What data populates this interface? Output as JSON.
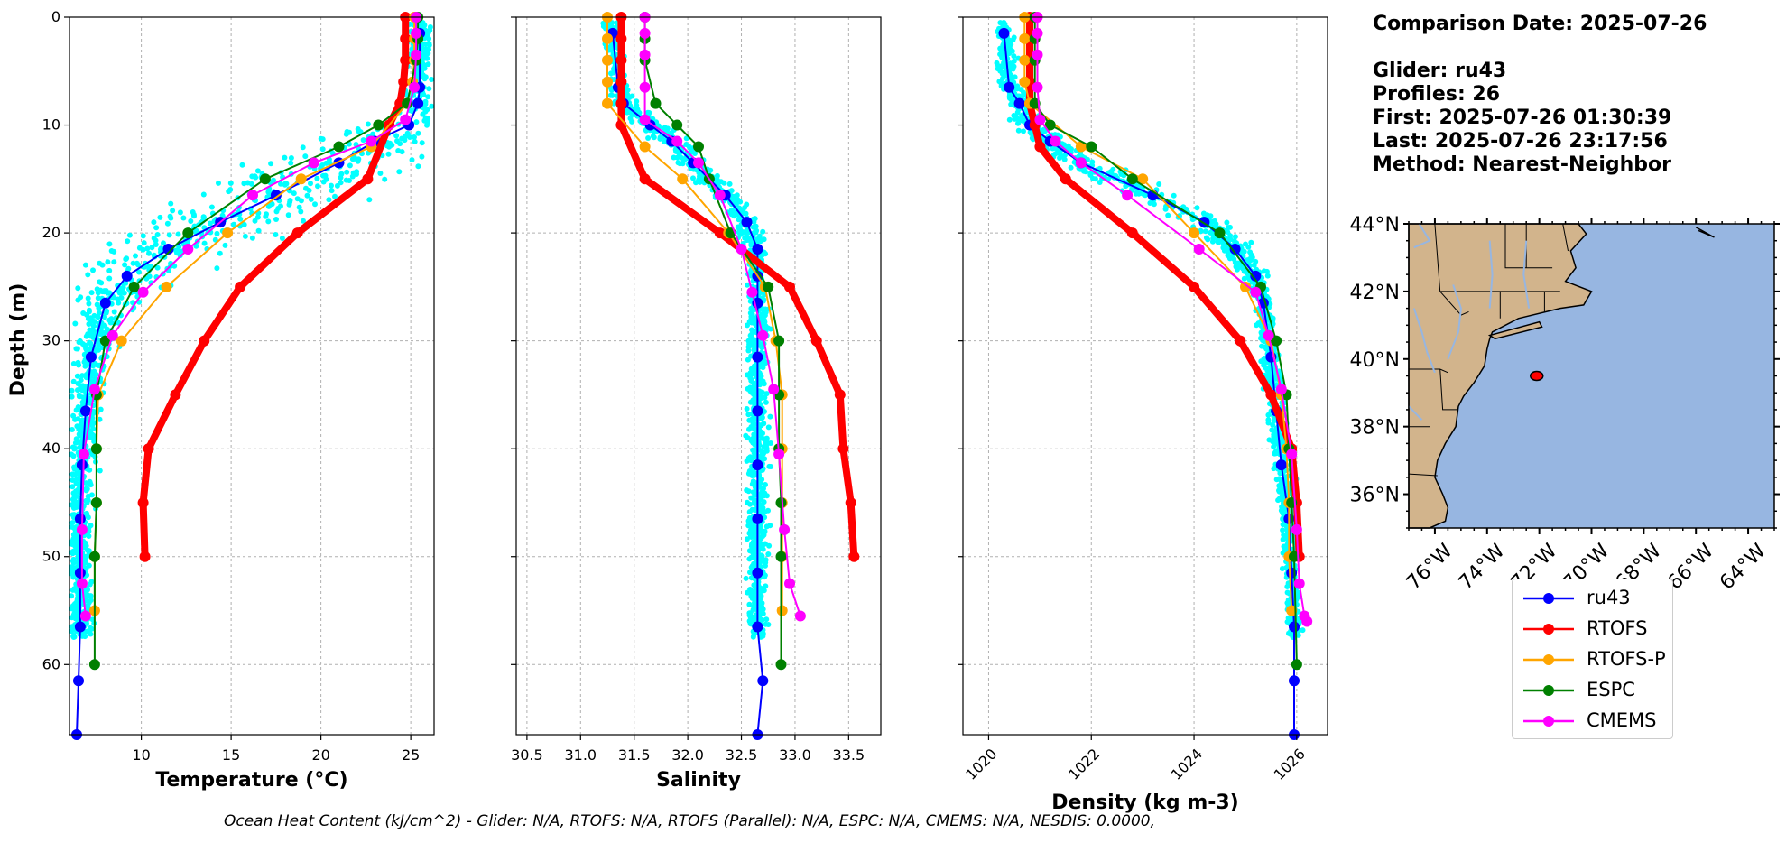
{
  "chart_data": [
    {
      "type": "line",
      "xlabel": "Temperature (°C)",
      "ylabel": "Depth (m)",
      "xlim": [
        6,
        26.3
      ],
      "ylim": [
        66.5,
        0
      ],
      "xticks": [
        10,
        15,
        20,
        25
      ],
      "yticks": [
        0,
        10,
        20,
        30,
        40,
        50,
        60
      ],
      "grid": true,
      "series": [
        {
          "name": "ru43",
          "color": "#0000ff",
          "x": [
            25.5,
            25.5,
            25.4,
            24.9,
            23.0,
            21.0,
            17.5,
            14.4,
            11.5,
            9.2,
            8.0,
            7.2,
            6.9,
            6.7,
            6.6,
            6.6,
            6.6,
            6.5,
            6.4
          ],
          "y": [
            1.5,
            6.5,
            8.0,
            10.0,
            11.5,
            13.5,
            16.5,
            19.0,
            21.5,
            24.0,
            26.5,
            31.5,
            36.5,
            41.5,
            46.5,
            51.5,
            56.5,
            61.5,
            66.5
          ]
        },
        {
          "name": "RTOFS",
          "color": "#ff0000",
          "x": [
            24.7,
            24.7,
            24.7,
            24.6,
            24.4,
            23.8,
            22.6,
            18.7,
            15.5,
            13.5,
            11.9,
            10.4,
            10.1,
            10.2
          ],
          "y": [
            0,
            2,
            4,
            6,
            8,
            10,
            15,
            20,
            25,
            30,
            35,
            40,
            45,
            50
          ]
        },
        {
          "name": "RTOFS-P",
          "color": "#ffa500",
          "x": [
            25.2,
            25.2,
            25.2,
            25.1,
            24.8,
            22.8,
            18.9,
            14.8,
            11.4,
            8.9,
            7.6,
            7.5,
            7.5,
            7.4,
            7.4
          ],
          "y": [
            0,
            2,
            4,
            6,
            8,
            12,
            15,
            20,
            25,
            30,
            35,
            40,
            45,
            50,
            55
          ]
        },
        {
          "name": "ESPC",
          "color": "#008000",
          "x": [
            25.4,
            25.4,
            25.3,
            24.8,
            23.2,
            21.0,
            16.9,
            12.6,
            9.6,
            8.0,
            7.5,
            7.5,
            7.5,
            7.4,
            7.4
          ],
          "y": [
            0,
            2,
            4,
            8,
            10,
            12,
            15,
            20,
            25,
            30,
            35,
            40,
            45,
            50,
            60
          ]
        },
        {
          "name": "CMEMS",
          "color": "#ff00ff",
          "x": [
            25.3,
            25.3,
            25.3,
            25.2,
            24.7,
            22.8,
            19.6,
            16.2,
            12.6,
            10.1,
            8.4,
            7.4,
            6.8,
            6.7,
            6.7,
            6.9
          ],
          "y": [
            0,
            1.5,
            3.5,
            6.5,
            9.5,
            11.5,
            13.5,
            16.5,
            21.5,
            25.5,
            29.5,
            34.5,
            40.5,
            47.5,
            52.5,
            55.5
          ]
        }
      ]
    },
    {
      "type": "line",
      "xlabel": "Salinity",
      "xlim": [
        30.4,
        33.8
      ],
      "ylim": [
        66.5,
        0
      ],
      "xticks": [
        "30.5",
        "31.0",
        "31.5",
        "32.0",
        "32.5",
        "33.0",
        "33.5"
      ],
      "yticks": [
        0,
        10,
        20,
        30,
        40,
        50,
        60
      ],
      "grid": true,
      "series": [
        {
          "name": "ru43",
          "color": "#0000ff",
          "x": [
            31.3,
            31.35,
            31.4,
            31.65,
            31.85,
            32.05,
            32.35,
            32.55,
            32.65,
            32.65,
            32.65,
            32.65,
            32.65,
            32.65,
            32.65,
            32.65,
            32.65,
            32.7,
            32.65
          ],
          "y": [
            1.5,
            6.5,
            8.0,
            10.0,
            11.5,
            13.5,
            16.5,
            19.0,
            21.5,
            24.0,
            26.5,
            31.5,
            36.5,
            41.5,
            46.5,
            51.5,
            56.5,
            61.5,
            66.5
          ]
        },
        {
          "name": "RTOFS",
          "color": "#ff0000",
          "x": [
            31.38,
            31.38,
            31.38,
            31.38,
            31.38,
            31.38,
            31.6,
            32.3,
            32.95,
            33.2,
            33.42,
            33.45,
            33.52,
            33.55
          ],
          "y": [
            0,
            2,
            4,
            6,
            8,
            10,
            15,
            20,
            25,
            30,
            35,
            40,
            45,
            50
          ]
        },
        {
          "name": "RTOFS-P",
          "color": "#ffa500",
          "x": [
            31.25,
            31.25,
            31.25,
            31.25,
            31.25,
            31.6,
            31.95,
            32.38,
            32.72,
            32.82,
            32.88,
            32.88,
            32.88,
            32.88,
            32.88
          ],
          "y": [
            0,
            2,
            4,
            6,
            8,
            12,
            15,
            20,
            25,
            30,
            35,
            40,
            45,
            50,
            55
          ]
        },
        {
          "name": "ESPC",
          "color": "#008000",
          "x": [
            31.6,
            31.6,
            31.6,
            31.7,
            31.9,
            32.1,
            32.2,
            32.4,
            32.75,
            32.85,
            32.85,
            32.85,
            32.87,
            32.87,
            32.87
          ],
          "y": [
            0,
            2,
            4,
            8,
            10,
            12,
            15,
            20,
            25,
            30,
            35,
            40,
            45,
            50,
            60
          ]
        },
        {
          "name": "CMEMS",
          "color": "#ff00ff",
          "x": [
            31.6,
            31.6,
            31.6,
            31.6,
            31.6,
            31.9,
            32.1,
            32.3,
            32.5,
            32.6,
            32.7,
            32.8,
            32.85,
            32.9,
            32.95,
            33.05
          ],
          "y": [
            0,
            1.5,
            3.5,
            6.5,
            9.5,
            11.5,
            13.5,
            16.5,
            21.5,
            25.5,
            29.5,
            34.5,
            40.5,
            47.5,
            52.5,
            55.5
          ]
        }
      ]
    },
    {
      "type": "line",
      "xlabel": "Density (kg m-3)",
      "xlim": [
        1019.5,
        1026.6
      ],
      "ylim": [
        66.5,
        0
      ],
      "xticks": [
        1020,
        1022,
        1024,
        1026
      ],
      "yticks": [
        0,
        10,
        20,
        30,
        40,
        50,
        60
      ],
      "grid": true,
      "series": [
        {
          "name": "ru43",
          "color": "#0000ff",
          "x": [
            1020.3,
            1020.4,
            1020.6,
            1020.8,
            1021.2,
            1021.8,
            1023.2,
            1024.2,
            1024.8,
            1025.2,
            1025.35,
            1025.5,
            1025.6,
            1025.7,
            1025.85,
            1025.9,
            1025.95,
            1025.95,
            1025.95
          ],
          "y": [
            1.5,
            6.5,
            8.0,
            10.0,
            11.5,
            13.5,
            16.5,
            19.0,
            21.5,
            24.0,
            26.5,
            31.5,
            36.5,
            41.5,
            46.5,
            51.5,
            56.5,
            61.5,
            66.5
          ]
        },
        {
          "name": "RTOFS",
          "color": "#ff0000",
          "x": [
            1020.8,
            1020.8,
            1020.8,
            1020.8,
            1020.8,
            1020.9,
            1021.0,
            1021.5,
            1022.8,
            1024.0,
            1024.9,
            1025.5,
            1025.9,
            1026.0,
            1026.05
          ],
          "y": [
            0,
            2,
            4,
            6,
            8,
            10,
            12,
            15,
            20,
            25,
            30,
            35,
            40,
            45,
            50
          ]
        },
        {
          "name": "RTOFS-P",
          "color": "#ffa500",
          "x": [
            1020.7,
            1020.7,
            1020.7,
            1020.7,
            1020.8,
            1021.8,
            1023.0,
            1024.0,
            1025.0,
            1025.5,
            1025.7,
            1025.8,
            1025.85,
            1025.85,
            1025.9
          ],
          "y": [
            0,
            2,
            4,
            6,
            8,
            12,
            15,
            20,
            25,
            30,
            35,
            40,
            45,
            50,
            55
          ]
        },
        {
          "name": "ESPC",
          "color": "#008000",
          "x": [
            1020.9,
            1020.9,
            1020.9,
            1020.9,
            1021.2,
            1022.0,
            1022.8,
            1024.5,
            1025.3,
            1025.6,
            1025.8,
            1025.85,
            1025.9,
            1025.95,
            1026.0
          ],
          "y": [
            0,
            2,
            4,
            8,
            10,
            12,
            15,
            20,
            25,
            30,
            35,
            40,
            45,
            50,
            60
          ]
        },
        {
          "name": "CMEMS",
          "color": "#ff00ff",
          "x": [
            1020.95,
            1020.95,
            1020.95,
            1020.95,
            1021.0,
            1021.3,
            1021.8,
            1022.7,
            1024.1,
            1025.2,
            1025.45,
            1025.7,
            1025.9,
            1026.0,
            1026.05,
            1026.15,
            1026.2
          ],
          "y": [
            0,
            1.5,
            3.5,
            6.5,
            9.5,
            11.5,
            13.5,
            16.5,
            21.5,
            25.5,
            29.5,
            34.5,
            40.5,
            47.5,
            52.5,
            55.5,
            56.0
          ]
        }
      ]
    }
  ],
  "legend": {
    "placement": "below-map",
    "items": [
      {
        "label": "ru43",
        "color": "#0000ff"
      },
      {
        "label": "RTOFS",
        "color": "#ff0000"
      },
      {
        "label": "RTOFS-P",
        "color": "#ffa500"
      },
      {
        "label": "ESPC",
        "color": "#008000"
      },
      {
        "label": "CMEMS",
        "color": "#ff00ff"
      }
    ]
  },
  "info": {
    "date": "Comparison Date: 2025-07-26",
    "glider": "Glider: ru43",
    "profiles": "Profiles: 26",
    "first": "First: 2025-07-26 01:30:39",
    "last": "Last: 2025-07-26 23:17:56",
    "method": "Method: Nearest-Neighbor"
  },
  "map": {
    "lat_labels": [
      "44°N",
      "42°N",
      "40°N",
      "38°N",
      "36°N"
    ],
    "lon_labels": [
      "76°W",
      "74°W",
      "72°W",
      "70°W",
      "68°W",
      "66°W",
      "64°W"
    ],
    "land_color": "#d2b48c",
    "ocean_color": "#97b6e1",
    "glider_location": {
      "lon": -72.1,
      "lat": 39.5
    }
  },
  "footer": "Ocean Heat Content (kJ/cm^2) - Glider: N/A,  RTOFS: N/A,  RTOFS (Parallel): N/A,  ESPC: N/A,  CMEMS: N/A,  NESDIS: 0.0000,",
  "colors": {
    "glider_scatter": "#00ffff"
  }
}
